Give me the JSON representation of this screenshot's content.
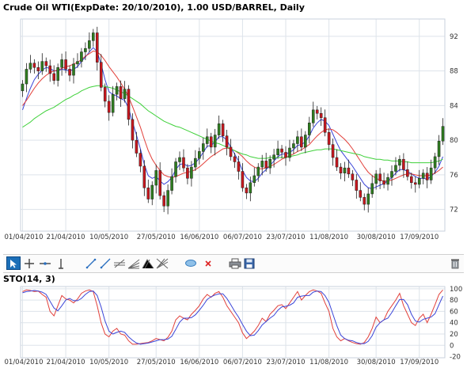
{
  "chart_title": "Crude Oil WTI(ExpDate: 20/10/2010), 1.00 USD/BARREL, Daily",
  "colors": {
    "up": "#2e7d1f",
    "down": "#c8161d",
    "ma_fast": "#3a45d8",
    "ma_mid": "#e2403a",
    "ma_slow": "#3fd13a",
    "sto_k": "#e2403a",
    "sto_d": "#3a45d8",
    "grid": "#dde3ea"
  },
  "toolbar": {
    "icons": [
      "cursor-arrow-icon",
      "crosshair-icon",
      "horizontal-line-icon",
      "vertical-line-icon",
      "trend-line-icon",
      "ray-line-icon",
      "parallel-channel-icon",
      "fibonacci-fan-icon",
      "pitchfork-icon",
      "gann-fan-icon",
      "text-bubble-icon",
      "delete-drawing-icon",
      "print-icon",
      "save-icon",
      "trash-icon"
    ]
  },
  "chart_data": [
    {
      "type": "candlestick",
      "title": "Crude Oil WTI(ExpDate: 20/10/2010), 1.00 USD/BARREL, Daily",
      "x_tick_labels": [
        "01/04/2010",
        "21/04/2010",
        "10/05/2010",
        "27/05/2010",
        "16/06/2010",
        "06/07/2010",
        "23/07/2010",
        "11/08/2010",
        "30/08/2010",
        "17/09/2010"
      ],
      "y_ticks": [
        72,
        76,
        80,
        84,
        88,
        92
      ],
      "ylim": [
        69.5,
        94
      ],
      "grid": true,
      "close": [
        86.5,
        88.2,
        88.9,
        88.4,
        88.0,
        89.1,
        88.6,
        87.7,
        86.9,
        88.4,
        89.3,
        88.2,
        87.5,
        88.8,
        89.1,
        90.2,
        90.6,
        91.5,
        92.4,
        89.0,
        86.1,
        84.5,
        83.2,
        85.3,
        86.2,
        84.8,
        85.9,
        82.4,
        80.0,
        78.5,
        77.0,
        74.5,
        73.2,
        74.8,
        76.5,
        73.6,
        72.4,
        74.2,
        75.8,
        77.5,
        78.0,
        76.8,
        75.6,
        76.9,
        77.9,
        78.7,
        79.6,
        80.4,
        79.2,
        80.6,
        81.9,
        80.5,
        79.2,
        78.1,
        77.5,
        76.4,
        74.5,
        73.9,
        75.1,
        75.9,
        76.9,
        77.6,
        76.8,
        77.8,
        78.3,
        79.0,
        78.6,
        78.0,
        79.1,
        79.6,
        80.4,
        79.2,
        80.6,
        82.0,
        83.5,
        83.1,
        82.6,
        80.9,
        79.5,
        78.0,
        76.9,
        76.2,
        76.8,
        76.1,
        75.4,
        74.2,
        73.4,
        72.6,
        73.8,
        75.0,
        76.1,
        75.3,
        74.9,
        75.7,
        76.4,
        77.1,
        77.8,
        76.6,
        75.8,
        75.1,
        74.9,
        75.6,
        76.2,
        75.4,
        76.8,
        78.1,
        79.9,
        81.6
      ],
      "series": [
        {
          "name": "",
          "kind": "moving-average",
          "color": "#3a45d8",
          "values": [
            83.5,
            84.8,
            86.0,
            87.0,
            87.6,
            88.1,
            88.4,
            88.3,
            88.0,
            88.0,
            88.2,
            88.1,
            88.0,
            88.2,
            88.5,
            89.1,
            89.6,
            90.2,
            90.7,
            90.2,
            88.8,
            87.0,
            85.6,
            85.3,
            85.1,
            84.8,
            84.6,
            83.7,
            82.1,
            80.6,
            79.0,
            77.2,
            75.9,
            75.6,
            75.8,
            75.3,
            74.9,
            75.2,
            75.7,
            76.6,
            77.2,
            77.3,
            77.0,
            77.1,
            77.4,
            77.9,
            78.6,
            79.3,
            79.4,
            79.8,
            80.4,
            80.4,
            80.0,
            79.2,
            78.4,
            77.6,
            76.5,
            75.7,
            75.3,
            75.2,
            75.6,
            76.2,
            76.6,
            77.1,
            77.6,
            78.1,
            78.4,
            78.4,
            78.6,
            78.9,
            79.4,
            79.5,
            79.8,
            80.5,
            81.4,
            82.0,
            82.4,
            82.2,
            81.7,
            80.7,
            79.7,
            78.8,
            78.2,
            77.6,
            77.0,
            76.3,
            75.6,
            74.9,
            74.5,
            74.4,
            74.6,
            74.8,
            75.0,
            75.3,
            75.7,
            76.2,
            76.6,
            76.6,
            76.4,
            76.1,
            75.8,
            75.6,
            75.6,
            75.5,
            75.8,
            76.3,
            77.0,
            78.1
          ]
        },
        {
          "name": "",
          "kind": "moving-average",
          "color": "#e2403a",
          "values": [
            84.0,
            84.6,
            85.3,
            86.0,
            86.6,
            87.1,
            87.5,
            87.8,
            88.0,
            88.1,
            88.3,
            88.5,
            88.6,
            88.8,
            89.0,
            89.3,
            89.7,
            90.0,
            90.3,
            90.2,
            89.8,
            89.2,
            88.5,
            87.9,
            87.3,
            86.6,
            85.9,
            85.0,
            83.9,
            82.7,
            81.5,
            80.1,
            78.8,
            77.8,
            77.1,
            76.5,
            76.0,
            75.8,
            75.7,
            75.8,
            76.0,
            76.2,
            76.3,
            76.4,
            76.6,
            76.9,
            77.3,
            77.7,
            78.1,
            78.4,
            78.7,
            79.0,
            79.1,
            79.0,
            78.8,
            78.5,
            78.1,
            77.6,
            77.2,
            76.9,
            76.7,
            76.7,
            76.8,
            77.0,
            77.2,
            77.5,
            77.8,
            78.0,
            78.2,
            78.4,
            78.7,
            78.9,
            79.2,
            79.5,
            80.0,
            80.5,
            80.9,
            81.2,
            81.3,
            81.2,
            80.9,
            80.5,
            80.1,
            79.6,
            79.0,
            78.3,
            77.6,
            76.9,
            76.3,
            75.9,
            75.6,
            75.4,
            75.3,
            75.3,
            75.4,
            75.6,
            75.8,
            76.0,
            76.1,
            76.1,
            76.0,
            75.9,
            75.9,
            75.9,
            76.0,
            76.2,
            76.5,
            76.9
          ]
        },
        {
          "name": "",
          "kind": "moving-average",
          "color": "#3fd13a",
          "values": [
            81.5,
            81.8,
            82.1,
            82.5,
            82.8,
            83.1,
            83.4,
            83.6,
            83.8,
            84.1,
            84.4,
            84.7,
            84.9,
            85.2,
            85.4,
            85.7,
            85.9,
            86.1,
            86.2,
            86.3,
            86.3,
            86.2,
            86.1,
            86.0,
            85.8,
            85.6,
            85.4,
            85.1,
            84.8,
            84.5,
            84.2,
            83.8,
            83.4,
            83.1,
            82.8,
            82.5,
            82.2,
            82.0,
            81.8,
            81.6,
            81.5,
            81.3,
            81.1,
            80.9,
            80.7,
            80.5,
            80.3,
            80.1,
            79.9,
            79.7,
            79.6,
            79.4,
            79.2,
            79.0,
            78.8,
            78.6,
            78.4,
            78.3,
            78.1,
            78.0,
            77.9,
            77.9,
            77.9,
            78.0,
            78.0,
            78.0,
            78.0,
            78.0,
            78.1,
            78.2,
            78.3,
            78.5,
            78.6,
            78.7,
            78.8,
            78.9,
            78.9,
            79.0,
            79.0,
            79.0,
            78.9,
            78.8,
            78.7,
            78.6,
            78.5,
            78.4,
            78.3,
            78.1,
            78.0,
            77.9,
            77.8,
            77.8,
            77.7,
            77.7,
            77.6,
            77.6,
            77.6,
            77.5,
            77.5,
            77.4,
            77.4,
            77.4,
            77.4,
            77.4,
            77.4,
            77.5,
            77.6,
            77.8
          ]
        }
      ]
    },
    {
      "type": "line",
      "title": "STO(14, 3)",
      "x_tick_labels": [
        "01/04/2010",
        "21/04/2010",
        "10/05/2010",
        "27/05/2010",
        "16/06/2010",
        "06/07/2010",
        "23/07/2010",
        "11/08/2010",
        "30/08/2010",
        "17/09/2010"
      ],
      "y_ticks": [
        -20,
        0,
        20,
        40,
        60,
        80,
        100
      ],
      "ylim": [
        -22,
        104
      ],
      "grid": true,
      "series": [
        {
          "name": "",
          "color": "#e2403a",
          "values": [
            95,
            98,
            97,
            95,
            96,
            90,
            85,
            60,
            52,
            70,
            88,
            82,
            80,
            75,
            82,
            92,
            96,
            98,
            95,
            70,
            40,
            20,
            15,
            25,
            30,
            20,
            18,
            8,
            2,
            2,
            3,
            4,
            5,
            8,
            12,
            10,
            8,
            14,
            25,
            45,
            52,
            48,
            45,
            55,
            62,
            70,
            82,
            90,
            85,
            92,
            95,
            85,
            70,
            60,
            50,
            40,
            22,
            12,
            18,
            25,
            35,
            48,
            42,
            55,
            62,
            70,
            72,
            65,
            75,
            85,
            95,
            80,
            88,
            95,
            98,
            96,
            92,
            75,
            60,
            30,
            15,
            8,
            12,
            8,
            5,
            3,
            2,
            5,
            15,
            30,
            50,
            40,
            45,
            60,
            70,
            80,
            92,
            70,
            55,
            40,
            35,
            48,
            55,
            40,
            55,
            72,
            90,
            98
          ]
        },
        {
          "name": "",
          "color": "#3a45d8",
          "values": [
            93,
            95,
            96,
            97,
            96,
            94,
            90,
            78,
            66,
            61,
            70,
            80,
            83,
            79,
            79,
            83,
            90,
            95,
            96,
            88,
            68,
            43,
            25,
            20,
            23,
            25,
            23,
            15,
            9,
            4,
            2,
            3,
            4,
            6,
            8,
            10,
            10,
            11,
            16,
            28,
            41,
            48,
            48,
            49,
            54,
            62,
            71,
            81,
            86,
            89,
            91,
            91,
            83,
            72,
            60,
            50,
            37,
            25,
            17,
            18,
            26,
            36,
            42,
            48,
            53,
            62,
            68,
            69,
            71,
            75,
            85,
            87,
            88,
            88,
            94,
            96,
            95,
            88,
            76,
            55,
            35,
            18,
            12,
            9,
            8,
            5,
            3,
            3,
            7,
            17,
            32,
            40,
            45,
            48,
            58,
            70,
            81,
            81,
            72,
            55,
            43,
            41,
            46,
            48,
            50,
            56,
            72,
            87
          ]
        }
      ]
    }
  ]
}
